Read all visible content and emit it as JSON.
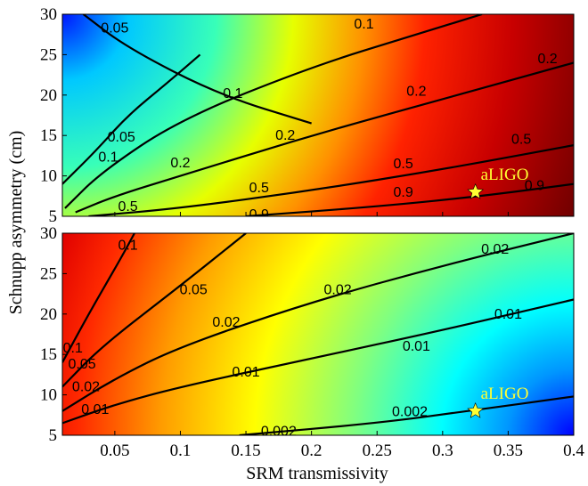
{
  "chart_data": [
    {
      "type": "heatmap",
      "title": "",
      "xlabel": "SRM transmissivity",
      "ylabel": "Schnupp asymmetry (cm)",
      "xlim": [
        0.01,
        0.4
      ],
      "ylim": [
        5,
        30
      ],
      "yticks": [
        5,
        10,
        15,
        20,
        25,
        30
      ],
      "colormap": "jet",
      "gradient_center": [
        0.01,
        30
      ],
      "gradient_stops": [
        {
          "r": 0.0,
          "color": "#0015ff"
        },
        {
          "r": 0.12,
          "color": "#00c8ff"
        },
        {
          "r": 0.28,
          "color": "#38ffb8"
        },
        {
          "r": 0.42,
          "color": "#e6ff00"
        },
        {
          "r": 0.55,
          "color": "#ff9000"
        },
        {
          "r": 0.66,
          "color": "#ff2200"
        },
        {
          "r": 0.82,
          "color": "#c80000"
        },
        {
          "r": 1.0,
          "color": "#700000"
        }
      ],
      "contours": [
        {
          "level": "0.05",
          "points": [
            [
              0.026,
              30
            ],
            [
              0.06,
              25.8
            ],
            [
              0.13,
              20
            ],
            [
              0.2,
              16.5
            ]
          ],
          "labels": [
            [
              0.05,
              28.3
            ],
            [
              0.055,
              14.8
            ]
          ]
        },
        {
          "level": "0.05",
          "points": [
            [
              0.01,
              9
            ],
            [
              0.035,
              13
            ],
            [
              0.06,
              17.5
            ],
            [
              0.09,
              21.5
            ],
            [
              0.115,
              25
            ]
          ]
        },
        {
          "level": "0.1",
          "points": [
            [
              0.012,
              6
            ],
            [
              0.04,
              10.5
            ],
            [
              0.1,
              17
            ],
            [
              0.2,
              23.5
            ],
            [
              0.28,
              27.5
            ],
            [
              0.33,
              30
            ]
          ],
          "labels": [
            [
              0.14,
              20.2
            ],
            [
              0.045,
              12.3
            ],
            [
              0.24,
              28.8
            ]
          ]
        },
        {
          "level": "0.2",
          "points": [
            [
              0.02,
              5.5
            ],
            [
              0.05,
              7.5
            ],
            [
              0.1,
              10
            ],
            [
              0.2,
              15
            ],
            [
              0.3,
              19.5
            ],
            [
              0.4,
              24
            ]
          ],
          "labels": [
            [
              0.1,
              11.6
            ],
            [
              0.18,
              15
            ],
            [
              0.28,
              20.5
            ],
            [
              0.38,
              24.5
            ]
          ]
        },
        {
          "level": "0.5",
          "points": [
            [
              0.03,
              5
            ],
            [
              0.1,
              6
            ],
            [
              0.2,
              8.2
            ],
            [
              0.3,
              10.8
            ],
            [
              0.4,
              13.8
            ]
          ],
          "labels": [
            [
              0.06,
              6.2
            ],
            [
              0.16,
              8.5
            ],
            [
              0.27,
              11.5
            ],
            [
              0.36,
              14.5
            ]
          ]
        },
        {
          "level": "0.9",
          "points": [
            [
              0.15,
              5
            ],
            [
              0.25,
              6.2
            ],
            [
              0.33,
              7.5
            ],
            [
              0.4,
              9
            ]
          ],
          "labels": [
            [
              0.16,
              5.2
            ],
            [
              0.27,
              8
            ],
            [
              0.37,
              8.8
            ]
          ]
        }
      ],
      "marker": {
        "x": 0.325,
        "y": 8,
        "label": "aLIGO"
      }
    },
    {
      "type": "heatmap",
      "title": "",
      "xlabel": "SRM transmissivity",
      "ylabel": "Schnupp asymmetry (cm)",
      "xlim": [
        0.01,
        0.4
      ],
      "xticks": [
        0.05,
        0.1,
        0.15,
        0.2,
        0.25,
        0.3,
        0.35,
        0.4
      ],
      "ylim": [
        5,
        30
      ],
      "yticks": [
        5,
        10,
        15,
        20,
        25,
        30
      ],
      "colormap": "jet",
      "gradient_center": [
        0.4,
        5
      ],
      "gradient_stops": [
        {
          "r": 0.0,
          "color": "#0000ff"
        },
        {
          "r": 0.12,
          "color": "#0096ff"
        },
        {
          "r": 0.24,
          "color": "#00ffff"
        },
        {
          "r": 0.4,
          "color": "#80ff80"
        },
        {
          "r": 0.58,
          "color": "#ffff00"
        },
        {
          "r": 0.75,
          "color": "#ff9c00"
        },
        {
          "r": 0.9,
          "color": "#ff2a00"
        },
        {
          "r": 1.0,
          "color": "#e00000"
        }
      ],
      "contours": [
        {
          "level": "0.1",
          "points": [
            [
              0.01,
              14
            ],
            [
              0.03,
              20
            ],
            [
              0.055,
              27
            ],
            [
              0.065,
              30
            ]
          ],
          "labels": [
            [
              0.018,
              15.8
            ],
            [
              0.06,
              28.5
            ]
          ]
        },
        {
          "level": "0.05",
          "points": [
            [
              0.01,
              11
            ],
            [
              0.04,
              16
            ],
            [
              0.1,
              23.5
            ],
            [
              0.15,
              30
            ]
          ],
          "labels": [
            [
              0.025,
              13.8
            ],
            [
              0.11,
              23
            ]
          ]
        },
        {
          "level": "0.02",
          "points": [
            [
              0.01,
              8
            ],
            [
              0.05,
              12
            ],
            [
              0.1,
              16
            ],
            [
              0.2,
              21.5
            ],
            [
              0.3,
              26
            ],
            [
              0.4,
              30
            ]
          ],
          "labels": [
            [
              0.028,
              11
            ],
            [
              0.135,
              19
            ],
            [
              0.22,
              23
            ],
            [
              0.34,
              28
            ]
          ]
        },
        {
          "level": "0.01",
          "points": [
            [
              0.01,
              6.5
            ],
            [
              0.05,
              8.8
            ],
            [
              0.1,
              11
            ],
            [
              0.2,
              14.5
            ],
            [
              0.3,
              18
            ],
            [
              0.4,
              21.8
            ]
          ],
          "labels": [
            [
              0.035,
              8.2
            ],
            [
              0.15,
              12.8
            ],
            [
              0.28,
              16
            ],
            [
              0.35,
              20
            ]
          ]
        },
        {
          "level": "0.002",
          "points": [
            [
              0.145,
              5
            ],
            [
              0.25,
              6.5
            ],
            [
              0.32,
              8
            ],
            [
              0.4,
              9.8
            ]
          ],
          "labels": [
            [
              0.175,
              5.5
            ],
            [
              0.275,
              7.9
            ]
          ]
        }
      ],
      "marker": {
        "x": 0.325,
        "y": 8,
        "label": "aLIGO"
      }
    }
  ],
  "colors": {
    "contour": "#000000",
    "marker_fill": "#ffff33",
    "marker_label": "#ffff33"
  }
}
